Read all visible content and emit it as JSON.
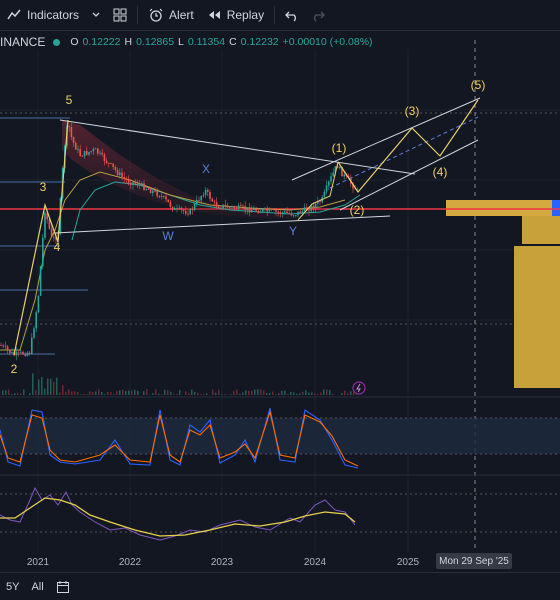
{
  "toolbar": {
    "indicators_label": "Indicators",
    "alert_label": "Alert",
    "replay_label": "Replay"
  },
  "symbol": {
    "exchange": "BINANCE",
    "open_label": "O",
    "open": "0.12222",
    "high_label": "H",
    "high": "0.12865",
    "low_label": "L",
    "low": "0.11354",
    "close_label": "C",
    "close": "0.12232",
    "change": "+0.00010 (+0.08%)"
  },
  "waves": {
    "w5": "5",
    "w3": "3",
    "w4": "4",
    "w2": "2",
    "wx": "X",
    "ww": "W",
    "wy": "Y",
    "p1": "(1)",
    "p2": "(2)",
    "p3": "(3)",
    "p4": "(4)",
    "p5": "(5)"
  },
  "x_axis": {
    "labels": [
      "2021",
      "2022",
      "2023",
      "2024",
      "2025"
    ],
    "crosshair_label": "Mon 29 Sep '25"
  },
  "bottom_bar": {
    "range_5y": "5Y",
    "range_all": "All"
  },
  "colors": {
    "background": "#131722",
    "up": "#26a69a",
    "down": "#ef5350",
    "wave_label": "#f0d060",
    "support_line": "#f23645",
    "zone": "#c9a13a"
  }
}
